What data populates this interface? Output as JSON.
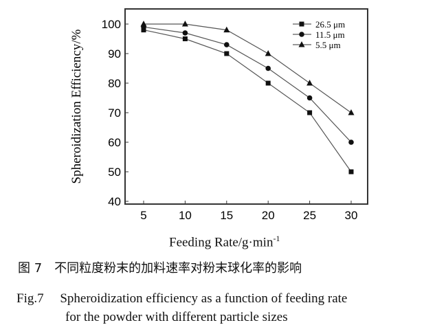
{
  "chart_data": {
    "type": "line",
    "x": [
      5,
      10,
      15,
      20,
      25,
      30
    ],
    "series": [
      {
        "name": "26.5 μm",
        "marker": "square",
        "values": [
          98,
          95,
          90,
          80,
          70,
          50
        ]
      },
      {
        "name": "11.5 μm",
        "marker": "circle",
        "values": [
          99,
          97,
          93,
          85,
          75,
          60
        ]
      },
      {
        "name": "5.5 μm",
        "marker": "triangle",
        "values": [
          100,
          100,
          98,
          90,
          80,
          70
        ]
      }
    ],
    "xlabel": "Feeding Rate/g·min",
    "xlabel_sup": "-1",
    "ylabel": "Spheroidization Efficiency/%",
    "xticks": [
      5,
      10,
      15,
      20,
      25,
      30
    ],
    "yticks": [
      40,
      50,
      60,
      70,
      80,
      90,
      100
    ],
    "xlim": [
      2.5,
      33
    ],
    "ylim": [
      39.5,
      105
    ],
    "grid": false,
    "legend": "top-right",
    "color": "#222222"
  },
  "caption": {
    "cn": "图 7　不同粒度粉末的加料速率对粉末球化率的影响",
    "en_line1": "Fig.7　 Spheroidization efficiency as a function of feeding rate",
    "en_line2": "for the powder with different particle sizes"
  }
}
